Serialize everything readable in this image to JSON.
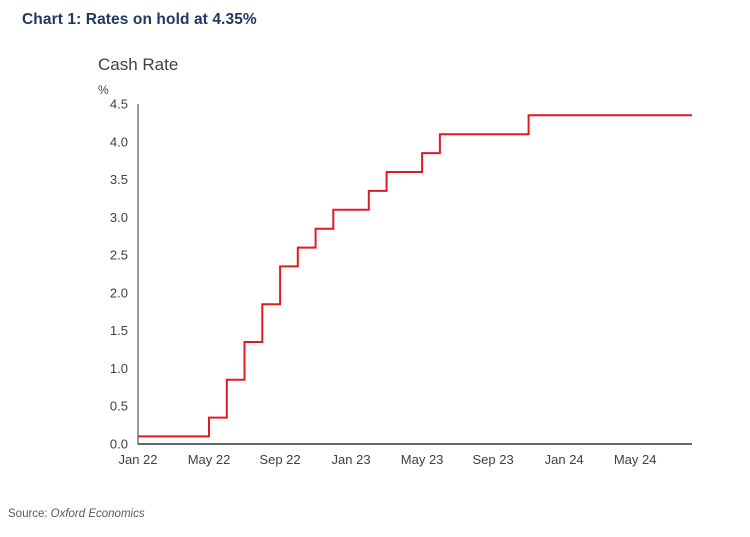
{
  "page": {
    "heading": "Chart 1: Rates on hold at 4.35%",
    "source_prefix": "Source:",
    "source_name": "Oxford Economics"
  },
  "chart_data": {
    "type": "line",
    "line_style": "step",
    "title": "Cash Rate",
    "unit_label": "%",
    "x_axis_unit": "months since Jan 2022",
    "ylim": [
      0,
      4.5
    ],
    "grid": false,
    "legend": "none",
    "final_value": 4.35,
    "y_ticks": [
      {
        "value": 0.0,
        "label": "0.0"
      },
      {
        "value": 0.5,
        "label": "0.5"
      },
      {
        "value": 1.0,
        "label": "1.0"
      },
      {
        "value": 1.5,
        "label": "1.5"
      },
      {
        "value": 2.0,
        "label": "2.0"
      },
      {
        "value": 2.5,
        "label": "2.5"
      },
      {
        "value": 3.0,
        "label": "3.0"
      },
      {
        "value": 3.5,
        "label": "3.5"
      },
      {
        "value": 4.0,
        "label": "4.0"
      },
      {
        "value": 4.5,
        "label": "4.5"
      }
    ],
    "x_ticks": [
      {
        "month": 0,
        "label": "Jan 22"
      },
      {
        "month": 4,
        "label": "May 22"
      },
      {
        "month": 8,
        "label": "Sep 22"
      },
      {
        "month": 12,
        "label": "Jan 23"
      },
      {
        "month": 16,
        "label": "May 23"
      },
      {
        "month": 20,
        "label": "Sep 23"
      },
      {
        "month": 24,
        "label": "Jan 24"
      },
      {
        "month": 28,
        "label": "May 24"
      }
    ],
    "series": [
      {
        "name": "Cash Rate",
        "color": "#e11b22",
        "end_month": 31.2,
        "steps_month_value": [
          [
            0,
            0.1
          ],
          [
            4,
            0.35
          ],
          [
            5,
            0.85
          ],
          [
            6,
            1.35
          ],
          [
            7,
            1.85
          ],
          [
            8,
            2.35
          ],
          [
            9,
            2.6
          ],
          [
            10,
            2.85
          ],
          [
            11,
            3.1
          ],
          [
            13,
            3.35
          ],
          [
            14,
            3.6
          ],
          [
            16,
            3.85
          ],
          [
            17,
            4.1
          ],
          [
            22,
            4.35
          ]
        ]
      }
    ]
  },
  "colors": {
    "heading": "#1f3864",
    "axis_text": "#404040",
    "axis_line": "#333333",
    "source_text": "#595959",
    "series_red": "#e11b22"
  }
}
